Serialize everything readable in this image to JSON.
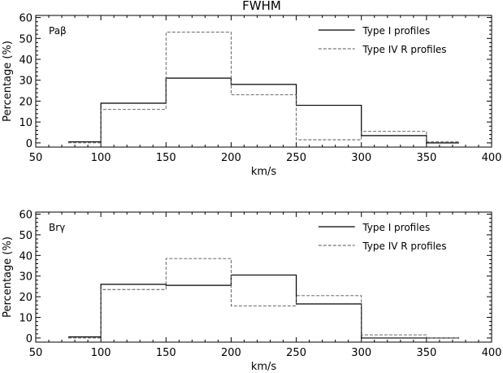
{
  "figure_title": "FWHM",
  "chart_data": [
    {
      "type": "step-histogram",
      "panel_label": "Paβ",
      "xlabel": "km/s",
      "ylabel": "Percentage (%)",
      "xlim": [
        50,
        400
      ],
      "ylim": [
        0,
        60
      ],
      "xticks": [
        50,
        100,
        150,
        200,
        250,
        300,
        350,
        400
      ],
      "yticks": [
        0,
        10,
        20,
        30,
        40,
        50,
        60
      ],
      "grid": false,
      "legend_position": "top-right",
      "bins": [
        75,
        100,
        150,
        200,
        250,
        300,
        350,
        375
      ],
      "series": [
        {
          "name": "Type I profiles",
          "style": "solid",
          "values": [
            0.5,
            19,
            31,
            28,
            18,
            3.5,
            0
          ]
        },
        {
          "name": "Type IV R profiles",
          "style": "dashed",
          "values": [
            0,
            16,
            53,
            23,
            1.5,
            5.5,
            0.5
          ]
        }
      ]
    },
    {
      "type": "step-histogram",
      "panel_label": "Brγ",
      "xlabel": "km/s",
      "ylabel": "Percentage (%)",
      "xlim": [
        50,
        400
      ],
      "ylim": [
        0,
        60
      ],
      "xticks": [
        50,
        100,
        150,
        200,
        250,
        300,
        350,
        400
      ],
      "yticks": [
        0,
        10,
        20,
        30,
        40,
        50,
        60
      ],
      "grid": false,
      "legend_position": "top-right",
      "bins": [
        75,
        100,
        150,
        200,
        250,
        300,
        350,
        375
      ],
      "series": [
        {
          "name": "Type I profiles",
          "style": "solid",
          "values": [
            0.5,
            26,
            25.5,
            30.5,
            16.5,
            0,
            0
          ]
        },
        {
          "name": "Type IV R profiles",
          "style": "dashed",
          "values": [
            0,
            23.5,
            38.5,
            15.5,
            20.5,
            1.5,
            0
          ]
        }
      ]
    }
  ]
}
